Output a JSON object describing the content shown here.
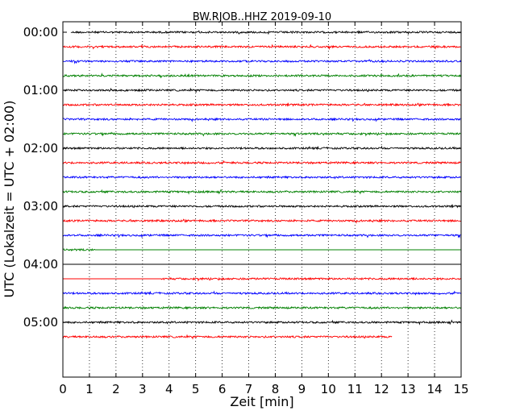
{
  "chart_data": {
    "type": "line",
    "title": "BW.RJOB..HHZ 2019-09-10",
    "xlabel": "Zeit  [min]",
    "ylabel": "UTC (Lokalzeit = UTC + 02:00)",
    "xlim": [
      0,
      15
    ],
    "ylim_hours": [
      0,
      6
    ],
    "x_ticks": [
      "0",
      "1",
      "2",
      "3",
      "4",
      "5",
      "6",
      "7",
      "8",
      "9",
      "10",
      "11",
      "12",
      "13",
      "14",
      "15"
    ],
    "y_ticks": [
      {
        "label": "00:00",
        "hour": 0
      },
      {
        "label": "01:00",
        "hour": 1
      },
      {
        "label": "02:00",
        "hour": 2
      },
      {
        "label": "03:00",
        "hour": 3
      },
      {
        "label": "04:00",
        "hour": 4
      },
      {
        "label": "05:00",
        "hour": 5
      }
    ],
    "grid": "vertical-dotted",
    "colors": [
      "#000000",
      "#ff0000",
      "#0000ff",
      "#008000"
    ],
    "series": [
      {
        "start_time": "00:00",
        "x_start": 0.3,
        "x_end": 15,
        "color": "#000000",
        "noise": 1.0
      },
      {
        "start_time": "00:15",
        "x_start": 0,
        "x_end": 15,
        "color": "#ff0000",
        "noise": 1.0
      },
      {
        "start_time": "00:30",
        "x_start": 0,
        "x_end": 15,
        "color": "#0000ff",
        "noise": 1.0
      },
      {
        "start_time": "00:45",
        "x_start": 0,
        "x_end": 15,
        "color": "#008000",
        "noise": 1.0
      },
      {
        "start_time": "01:00",
        "x_start": 0,
        "x_end": 15,
        "color": "#000000",
        "noise": 1.0
      },
      {
        "start_time": "01:15",
        "x_start": 0,
        "x_end": 15,
        "color": "#ff0000",
        "noise": 1.0
      },
      {
        "start_time": "01:30",
        "x_start": 0,
        "x_end": 15,
        "color": "#0000ff",
        "noise": 1.0
      },
      {
        "start_time": "01:45",
        "x_start": 0,
        "x_end": 15,
        "color": "#008000",
        "noise": 1.0
      },
      {
        "start_time": "02:00",
        "x_start": 0,
        "x_end": 15,
        "color": "#000000",
        "noise": 1.0
      },
      {
        "start_time": "02:15",
        "x_start": 0,
        "x_end": 15,
        "color": "#ff0000",
        "noise": 1.0
      },
      {
        "start_time": "02:30",
        "x_start": 0,
        "x_end": 15,
        "color": "#0000ff",
        "noise": 1.0
      },
      {
        "start_time": "02:45",
        "x_start": 0,
        "x_end": 15,
        "color": "#008000",
        "noise": 1.0
      },
      {
        "start_time": "03:00",
        "x_start": 0,
        "x_end": 15,
        "color": "#000000",
        "noise": 1.0
      },
      {
        "start_time": "03:15",
        "x_start": 0,
        "x_end": 15,
        "color": "#ff0000",
        "noise": 1.0
      },
      {
        "start_time": "03:30",
        "x_start": 0,
        "x_end": 15,
        "color": "#0000ff",
        "noise": 1.0
      },
      {
        "start_time": "03:45",
        "x_start": 0,
        "x_end": 15,
        "color": "#008000",
        "noise": 1.0,
        "noise_until": 1.2
      },
      {
        "start_time": "04:00",
        "x_start": 0,
        "x_end": 15,
        "color": "#000000",
        "noise": 0.0
      },
      {
        "start_time": "04:15",
        "x_start": 0,
        "x_end": 15,
        "color": "#ff0000",
        "noise": 1.0,
        "noise_from": 3.7
      },
      {
        "start_time": "04:30",
        "x_start": 0,
        "x_end": 15,
        "color": "#0000ff",
        "noise": 1.0
      },
      {
        "start_time": "04:45",
        "x_start": 0,
        "x_end": 15,
        "color": "#008000",
        "noise": 1.0
      },
      {
        "start_time": "05:00",
        "x_start": 0,
        "x_end": 15,
        "color": "#000000",
        "noise": 1.0
      },
      {
        "start_time": "05:15",
        "x_start": 0,
        "x_end": 12.4,
        "color": "#ff0000",
        "noise": 1.0
      }
    ]
  }
}
